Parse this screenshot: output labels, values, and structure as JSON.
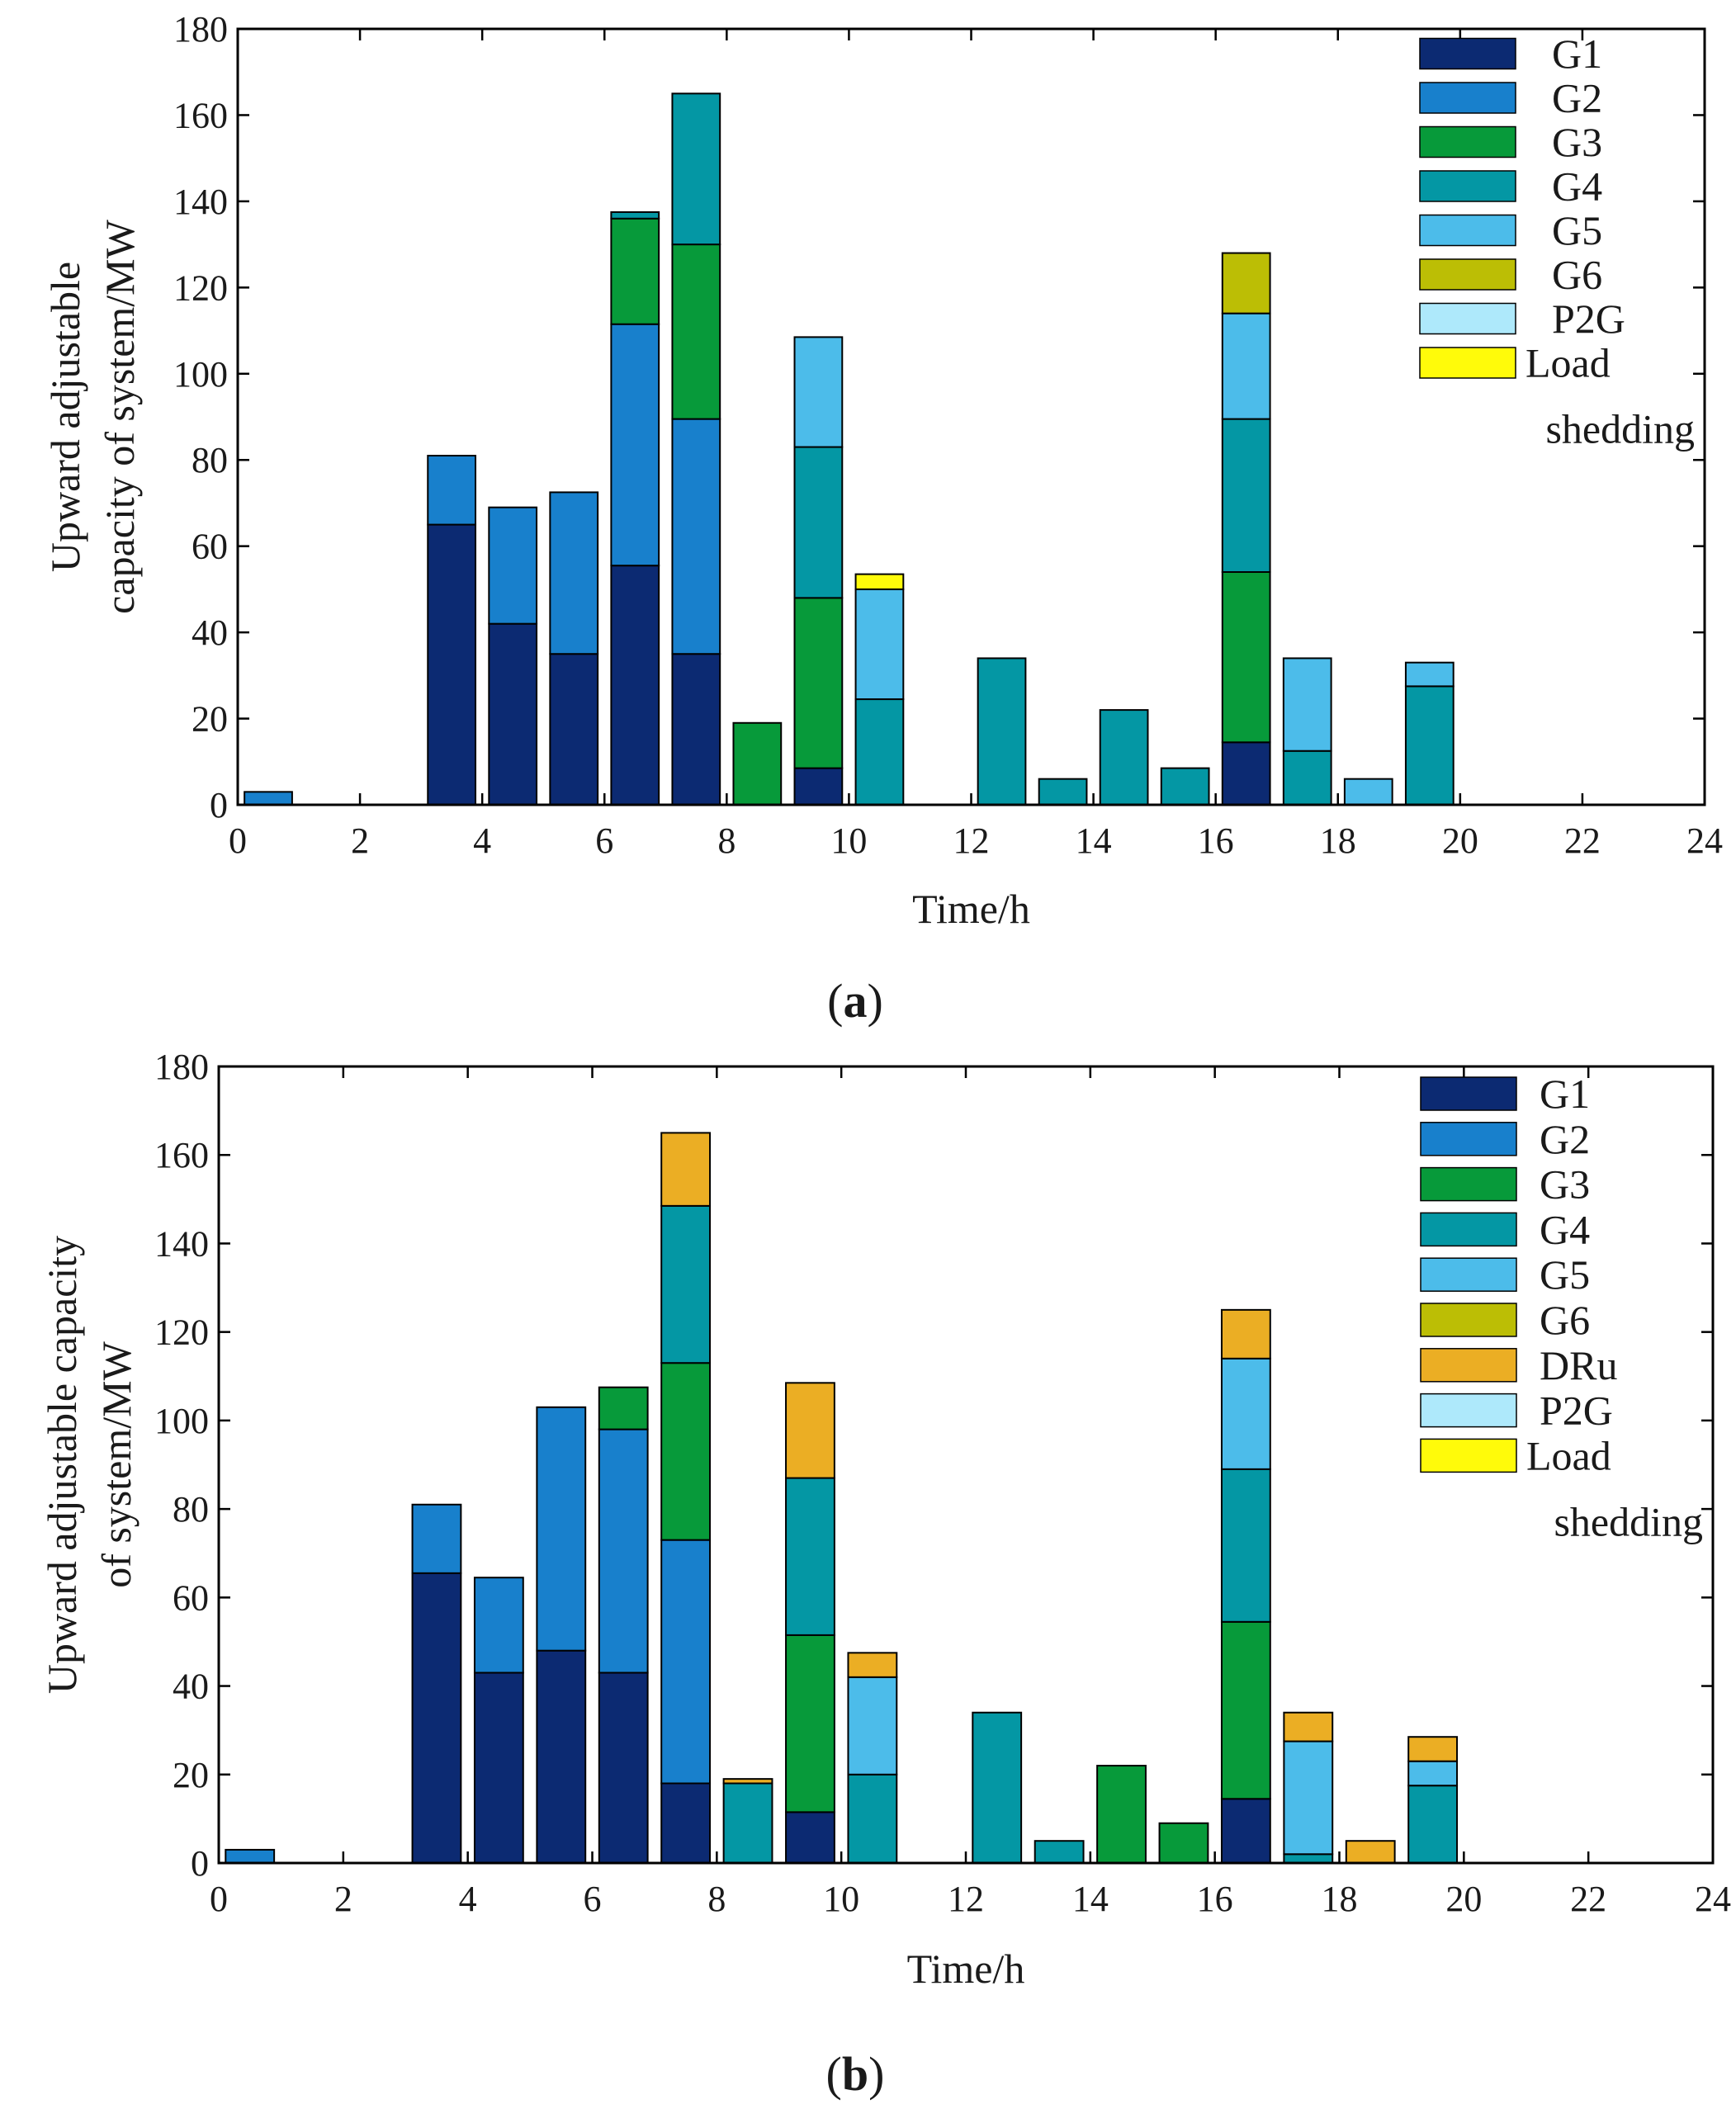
{
  "colors": {
    "G1": "#0c2a72",
    "G2": "#1880cc",
    "G3": "#079a3a",
    "G4": "#0497a4",
    "G5": "#4cbcea",
    "G6": "#bcbe05",
    "DRu": "#ebae24",
    "P2G": "#aee9fb",
    "Load shedding": "#fffb0a"
  },
  "chart_data": [
    {
      "panel": "a",
      "type": "bar",
      "stacked": true,
      "caption": {
        "open": "(",
        "letter": "a",
        "close": ")"
      },
      "xlabel": "Time/h",
      "ylabel_lines": [
        "Upward adjustable",
        "capacity of system/MW"
      ],
      "xlim": [
        0,
        24
      ],
      "ylim": [
        0,
        180
      ],
      "xticks": [
        0,
        2,
        4,
        6,
        8,
        10,
        12,
        14,
        16,
        18,
        20,
        22,
        24
      ],
      "yticks": [
        0,
        20,
        40,
        60,
        80,
        100,
        120,
        140,
        160,
        180
      ],
      "legend": [
        {
          "key": "G1",
          "label": "G1"
        },
        {
          "key": "G2",
          "label": "G2"
        },
        {
          "key": "G3",
          "label": "G3"
        },
        {
          "key": "G4",
          "label": "G4"
        },
        {
          "key": "G5",
          "label": "G5"
        },
        {
          "key": "G6",
          "label": "G6"
        },
        {
          "key": "P2G",
          "label": "P2G"
        },
        {
          "key": "Load shedding",
          "label": "Load",
          "label2": "shedding"
        }
      ],
      "bars": [
        {
          "hour": 1,
          "segments": [
            {
              "key": "G2",
              "value": 3
            }
          ]
        },
        {
          "hour": 4,
          "segments": [
            {
              "key": "G1",
              "value": 65
            },
            {
              "key": "G2",
              "value": 16
            }
          ]
        },
        {
          "hour": 5,
          "segments": [
            {
              "key": "G1",
              "value": 42
            },
            {
              "key": "G2",
              "value": 27
            }
          ]
        },
        {
          "hour": 6,
          "segments": [
            {
              "key": "G1",
              "value": 35
            },
            {
              "key": "G2",
              "value": 37.5
            }
          ]
        },
        {
          "hour": 7,
          "segments": [
            {
              "key": "G1",
              "value": 55.5
            },
            {
              "key": "G2",
              "value": 56
            },
            {
              "key": "G3",
              "value": 24.5
            },
            {
              "key": "G4",
              "value": 1.5
            }
          ]
        },
        {
          "hour": 8,
          "segments": [
            {
              "key": "G1",
              "value": 35
            },
            {
              "key": "G2",
              "value": 54.5
            },
            {
              "key": "G3",
              "value": 40.5
            },
            {
              "key": "G4",
              "value": 35
            }
          ]
        },
        {
          "hour": 9,
          "segments": [
            {
              "key": "G3",
              "value": 19
            }
          ]
        },
        {
          "hour": 10,
          "segments": [
            {
              "key": "G1",
              "value": 8.5
            },
            {
              "key": "G3",
              "value": 39.5
            },
            {
              "key": "G4",
              "value": 35
            },
            {
              "key": "G5",
              "value": 25.5
            }
          ]
        },
        {
          "hour": 11,
          "segments": [
            {
              "key": "G4",
              "value": 24.5
            },
            {
              "key": "G5",
              "value": 25.5
            },
            {
              "key": "Load shedding",
              "value": 3.5
            }
          ]
        },
        {
          "hour": 13,
          "segments": [
            {
              "key": "G4",
              "value": 34
            }
          ]
        },
        {
          "hour": 14,
          "segments": [
            {
              "key": "G4",
              "value": 6
            }
          ]
        },
        {
          "hour": 15,
          "segments": [
            {
              "key": "G4",
              "value": 22
            }
          ]
        },
        {
          "hour": 16,
          "segments": [
            {
              "key": "G4",
              "value": 8.5
            }
          ]
        },
        {
          "hour": 17,
          "segments": [
            {
              "key": "G1",
              "value": 14.5
            },
            {
              "key": "G3",
              "value": 39.5
            },
            {
              "key": "G4",
              "value": 35.5
            },
            {
              "key": "G5",
              "value": 24.5
            },
            {
              "key": "G6",
              "value": 14
            }
          ]
        },
        {
          "hour": 18,
          "segments": [
            {
              "key": "G4",
              "value": 12.5
            },
            {
              "key": "G5",
              "value": 21.5
            }
          ]
        },
        {
          "hour": 19,
          "segments": [
            {
              "key": "G5",
              "value": 6
            }
          ]
        },
        {
          "hour": 20,
          "segments": [
            {
              "key": "G4",
              "value": 27.5
            },
            {
              "key": "G5",
              "value": 5.5
            }
          ]
        }
      ]
    },
    {
      "panel": "b",
      "type": "bar",
      "stacked": true,
      "caption": {
        "open": "(",
        "letter": "b",
        "close": ")"
      },
      "xlabel": "Time/h",
      "ylabel_lines": [
        "Upward adjustable capacity",
        "of system/MW"
      ],
      "xlim": [
        0,
        24
      ],
      "ylim": [
        0,
        180
      ],
      "xticks": [
        0,
        2,
        4,
        6,
        8,
        10,
        12,
        14,
        16,
        18,
        20,
        22,
        24
      ],
      "yticks": [
        0,
        20,
        40,
        60,
        80,
        100,
        120,
        140,
        160,
        180
      ],
      "legend": [
        {
          "key": "G1",
          "label": "G1"
        },
        {
          "key": "G2",
          "label": "G2"
        },
        {
          "key": "G3",
          "label": "G3"
        },
        {
          "key": "G4",
          "label": "G4"
        },
        {
          "key": "G5",
          "label": "G5"
        },
        {
          "key": "G6",
          "label": "G6"
        },
        {
          "key": "DRu",
          "label": "DRu"
        },
        {
          "key": "P2G",
          "label": "P2G"
        },
        {
          "key": "Load shedding",
          "label": "Load",
          "label2": "shedding"
        }
      ],
      "bars": [
        {
          "hour": 1,
          "segments": [
            {
              "key": "G2",
              "value": 3
            }
          ]
        },
        {
          "hour": 4,
          "segments": [
            {
              "key": "G1",
              "value": 65.5
            },
            {
              "key": "G2",
              "value": 15.5
            }
          ]
        },
        {
          "hour": 5,
          "segments": [
            {
              "key": "G1",
              "value": 43
            },
            {
              "key": "G2",
              "value": 21.5
            }
          ]
        },
        {
          "hour": 6,
          "segments": [
            {
              "key": "G1",
              "value": 48
            },
            {
              "key": "G2",
              "value": 55
            }
          ]
        },
        {
          "hour": 7,
          "segments": [
            {
              "key": "G1",
              "value": 43
            },
            {
              "key": "G2",
              "value": 55
            },
            {
              "key": "G3",
              "value": 9.5
            }
          ]
        },
        {
          "hour": 8,
          "segments": [
            {
              "key": "G1",
              "value": 18
            },
            {
              "key": "G2",
              "value": 55
            },
            {
              "key": "G3",
              "value": 40
            },
            {
              "key": "G4",
              "value": 35.5
            },
            {
              "key": "DRu",
              "value": 16.5
            }
          ]
        },
        {
          "hour": 9,
          "segments": [
            {
              "key": "G4",
              "value": 18
            },
            {
              "key": "DRu",
              "value": 1
            }
          ]
        },
        {
          "hour": 10,
          "segments": [
            {
              "key": "G1",
              "value": 11.5
            },
            {
              "key": "G3",
              "value": 40
            },
            {
              "key": "G4",
              "value": 35.5
            },
            {
              "key": "DRu",
              "value": 21.5
            }
          ]
        },
        {
          "hour": 11,
          "segments": [
            {
              "key": "G4",
              "value": 20
            },
            {
              "key": "G5",
              "value": 22
            },
            {
              "key": "DRu",
              "value": 5.5
            }
          ]
        },
        {
          "hour": 13,
          "segments": [
            {
              "key": "G4",
              "value": 34
            }
          ]
        },
        {
          "hour": 14,
          "segments": [
            {
              "key": "G4",
              "value": 5
            }
          ]
        },
        {
          "hour": 15,
          "segments": [
            {
              "key": "G3",
              "value": 22
            }
          ]
        },
        {
          "hour": 16,
          "segments": [
            {
              "key": "G3",
              "value": 9
            }
          ]
        },
        {
          "hour": 17,
          "segments": [
            {
              "key": "G1",
              "value": 14.5
            },
            {
              "key": "G3",
              "value": 40
            },
            {
              "key": "G4",
              "value": 34.5
            },
            {
              "key": "G5",
              "value": 25
            },
            {
              "key": "DRu",
              "value": 11
            }
          ]
        },
        {
          "hour": 18,
          "segments": [
            {
              "key": "G4",
              "value": 2
            },
            {
              "key": "G5",
              "value": 25.5
            },
            {
              "key": "DRu",
              "value": 6.5
            }
          ]
        },
        {
          "hour": 19,
          "segments": [
            {
              "key": "DRu",
              "value": 5
            }
          ]
        },
        {
          "hour": 20,
          "segments": [
            {
              "key": "G4",
              "value": 17.5
            },
            {
              "key": "G5",
              "value": 5.5
            },
            {
              "key": "DRu",
              "value": 5.5
            }
          ]
        }
      ]
    }
  ]
}
